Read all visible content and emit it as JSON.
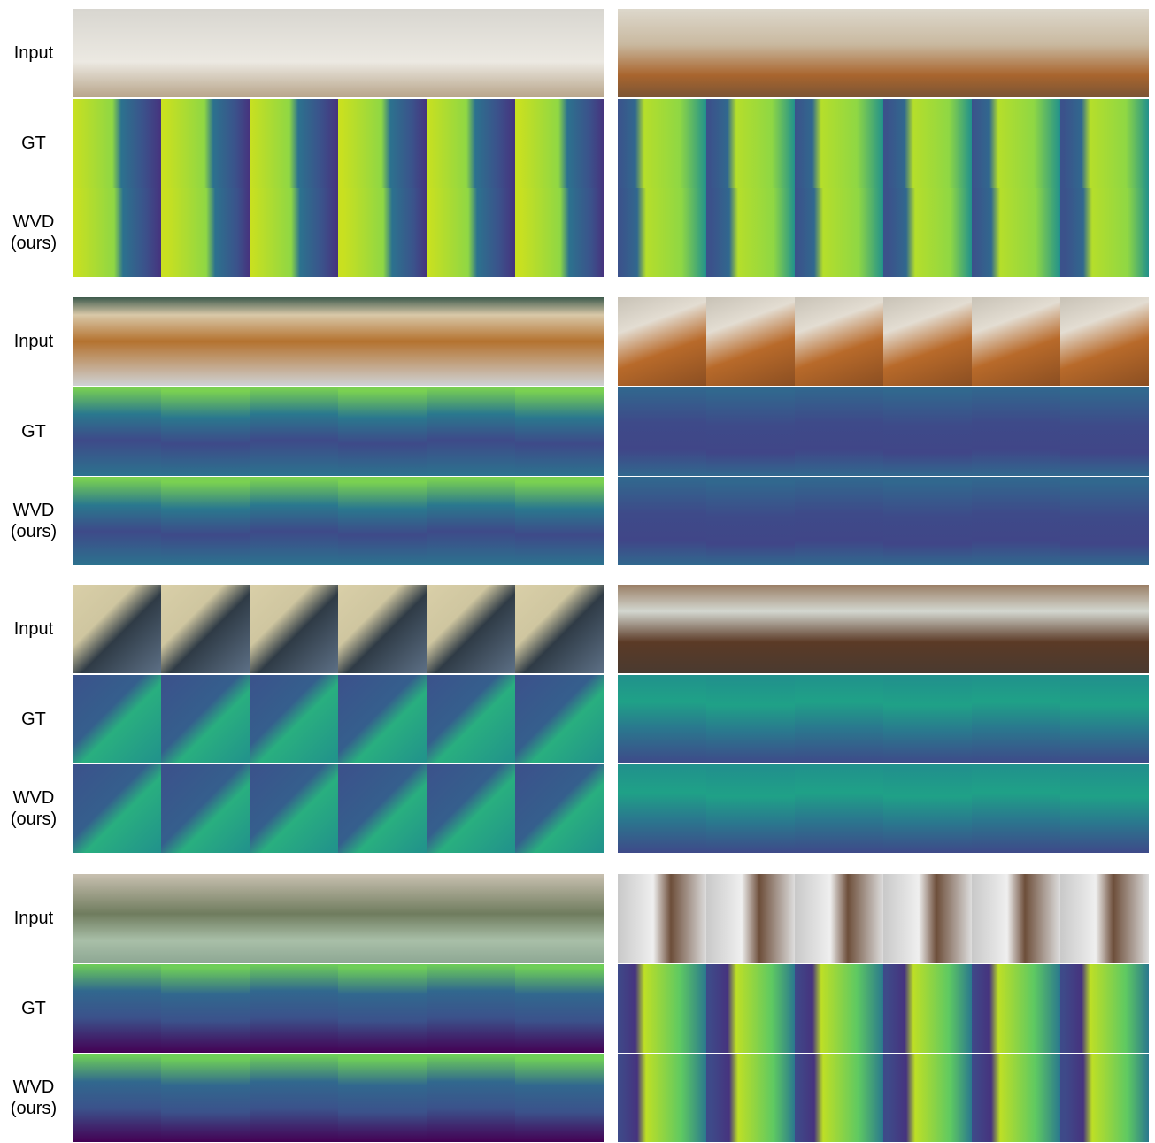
{
  "groups": [
    {
      "labels": [
        "Input",
        "GT",
        "WVD (ours)"
      ]
    },
    {
      "labels": [
        "Input",
        "GT",
        "WVD (ours)"
      ]
    },
    {
      "labels": [
        "Input",
        "GT",
        "WVD (ours)"
      ]
    },
    {
      "labels": [
        "Input",
        "GT",
        "WVD (ours)"
      ]
    }
  ]
}
